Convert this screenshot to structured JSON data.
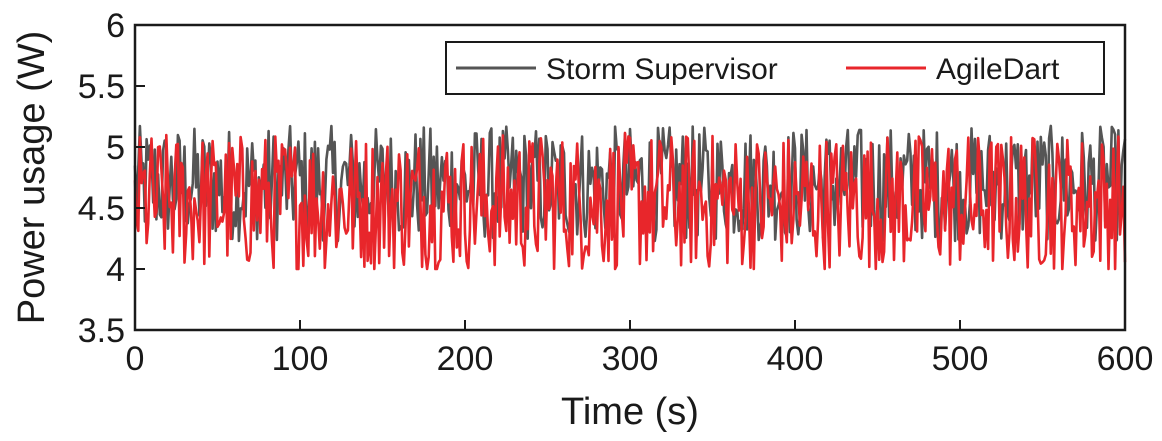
{
  "chart_data": {
    "type": "line",
    "title": "",
    "xlabel": "Time (s)",
    "ylabel": "Power usage (W)",
    "xlim": [
      0,
      600
    ],
    "ylim": [
      3.5,
      6
    ],
    "xticks": [
      "0",
      "100",
      "200",
      "300",
      "400",
      "500",
      "600"
    ],
    "yticks": [
      "3.5",
      "4",
      "4.5",
      "5",
      "5.5",
      "6"
    ],
    "grid": false,
    "legend_position": "top-right",
    "legend_layout": "horizontal",
    "series": [
      {
        "name": "Storm Supervisor",
        "color": "#555555",
        "range": [
          4.2,
          5.2
        ],
        "mean": 4.7
      },
      {
        "name": "AgileDart",
        "color": "#e8262b",
        "range": [
          4.0,
          5.2
        ],
        "mean": 4.55
      }
    ]
  }
}
